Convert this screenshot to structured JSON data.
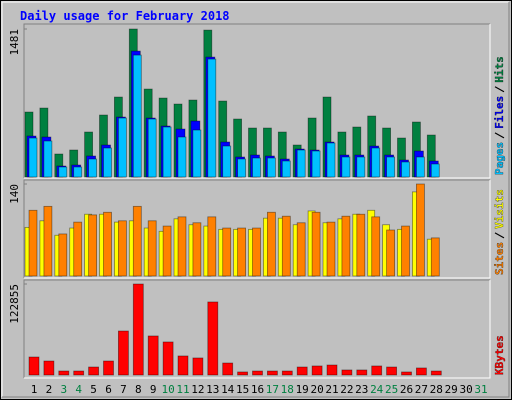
{
  "chart_data": [
    {
      "type": "bar",
      "title": "Daily usage for February 2018",
      "ylim": [
        0,
        1481
      ],
      "yticks": [
        1481
      ],
      "series": [
        {
          "name": "Hits",
          "color": "#008040",
          "values": [
            650,
            690,
            230,
            270,
            450,
            620,
            800,
            1481,
            880,
            790,
            730,
            770,
            1470,
            760,
            580,
            490,
            490,
            450,
            320,
            590,
            800,
            450,
            500,
            610,
            490,
            390,
            550,
            420,
            null,
            null,
            null
          ]
        },
        {
          "name": "Files",
          "color": "#0000FF",
          "values": [
            410,
            400,
            110,
            120,
            210,
            320,
            600,
            1260,
            590,
            510,
            480,
            560,
            1200,
            350,
            200,
            220,
            210,
            180,
            280,
            270,
            350,
            220,
            220,
            310,
            220,
            170,
            260,
            160,
            null,
            null,
            null
          ]
        },
        {
          "name": "Pages",
          "color": "#00C0FF",
          "values": [
            390,
            360,
            100,
            100,
            180,
            290,
            590,
            1220,
            580,
            500,
            400,
            470,
            1180,
            310,
            180,
            190,
            190,
            160,
            270,
            260,
            340,
            200,
            200,
            290,
            200,
            150,
            200,
            130,
            null,
            null,
            null
          ]
        }
      ]
    },
    {
      "type": "bar",
      "ylim": [
        0,
        140
      ],
      "yticks": [
        140
      ],
      "series": [
        {
          "name": "Visits",
          "color": "#FFFF00",
          "values": [
            74,
            84,
            62,
            73,
            94,
            94,
            82,
            84,
            73,
            68,
            87,
            78,
            76,
            71,
            71,
            71,
            88,
            88,
            78,
            99,
            81,
            87,
            94,
            100,
            78,
            71,
            128,
            56,
            null,
            null,
            null
          ]
        },
        {
          "name": "Sites",
          "color": "#FF8000",
          "values": [
            100,
            106,
            64,
            82,
            93,
            97,
            84,
            106,
            84,
            76,
            90,
            81,
            90,
            73,
            73,
            73,
            97,
            91,
            81,
            97,
            82,
            91,
            94,
            90,
            70,
            76,
            140,
            58,
            null,
            null,
            null
          ]
        }
      ]
    },
    {
      "type": "bar",
      "ylim": [
        0,
        122855
      ],
      "yticks": [
        122855
      ],
      "categories": [
        "1",
        "2",
        "3",
        "4",
        "5",
        "6",
        "7",
        "8",
        "9",
        "10",
        "11",
        "12",
        "13",
        "14",
        "15",
        "16",
        "17",
        "18",
        "19",
        "20",
        "21",
        "22",
        "23",
        "24",
        "25",
        "26",
        "27",
        "28",
        "29",
        "30",
        "31"
      ],
      "category_colors": [
        "#000000",
        "#000000",
        "#008040",
        "#008040",
        "#000000",
        "#000000",
        "#000000",
        "#000000",
        "#000000",
        "#008040",
        "#008040",
        "#000000",
        "#000000",
        "#000000",
        "#000000",
        "#000000",
        "#008040",
        "#008040",
        "#000000",
        "#000000",
        "#000000",
        "#000000",
        "#000000",
        "#008040",
        "#008040",
        "#000000",
        "#000000",
        "#000000",
        "#000000",
        "#000000",
        "#008040"
      ],
      "series": [
        {
          "name": "KBytes",
          "color": "#FF0000",
          "values": [
            24300,
            18900,
            5400,
            5400,
            10800,
            18900,
            59400,
            122855,
            52700,
            44600,
            25700,
            23000,
            98600,
            16200,
            4100,
            5400,
            5400,
            5400,
            10800,
            12200,
            13500,
            6800,
            6800,
            12200,
            10800,
            4100,
            9500,
            5400,
            null,
            null,
            null
          ]
        }
      ]
    }
  ]
}
